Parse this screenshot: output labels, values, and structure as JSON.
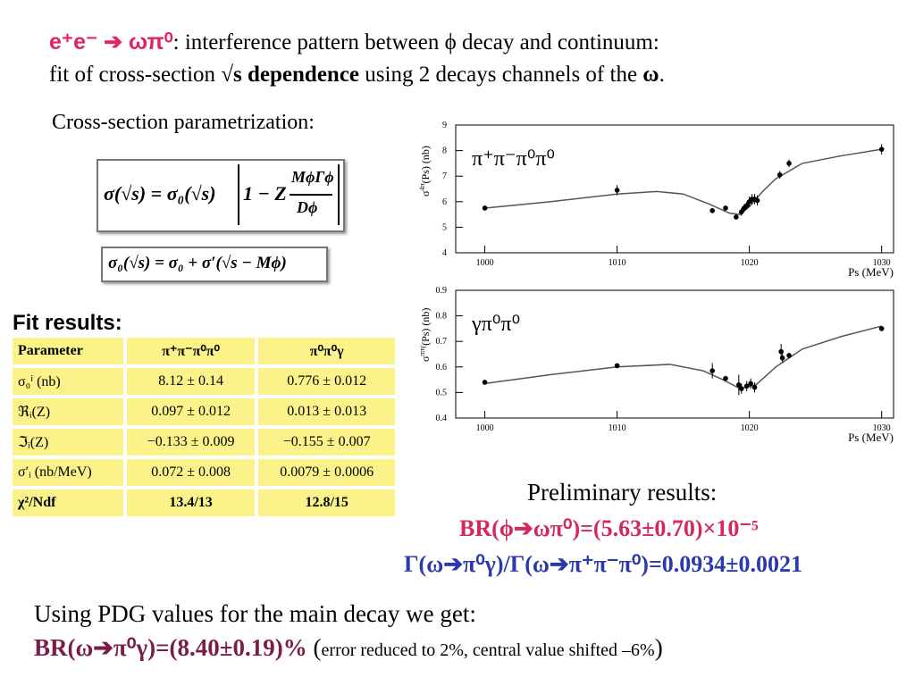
{
  "header": {
    "line_1": [
      "e⁺e⁻ ➔ ωπ⁰",
      ": interference pattern between ϕ decay and continuum:"
    ],
    "line_2": [
      "fit of cross-section ",
      "√s dependence",
      " using 2 decays channels of the ",
      "ω",
      "."
    ]
  },
  "parametrization_title": "Cross-section parametrization:",
  "formula_1": [
    "σ",
    "(√s)",
    " = σ₀",
    "(√s)",
    "1 − Z",
    "MϕΓϕ",
    "Dϕ"
  ],
  "formula_2": "σ₀(√s) = σ₀ + σ′(√s − Mϕ)",
  "fit_results_title": "Fit results:",
  "table": {
    "header": [
      "Parameter",
      "π⁺π⁻π⁰π⁰",
      "π⁰π⁰γ"
    ],
    "rows": [
      [
        "σ₀ⁱ (nb)",
        "8.12 ± 0.14",
        "0.776 ± 0.012"
      ],
      [
        "ℜᵢ(Z)",
        "0.097 ± 0.012",
        "0.013 ± 0.013"
      ],
      [
        "ℑᵢ(Z)",
        "−0.133 ± 0.009",
        "−0.155 ± 0.007"
      ],
      [
        "σ′ᵢ (nb/MeV)",
        "0.072 ± 0.008",
        "0.0079 ± 0.0006"
      ],
      [
        "χ²/Ndf",
        "13.4/13",
        "12.8/15"
      ]
    ]
  },
  "charts": [
    {
      "type": "scatter",
      "label": "π⁺π⁻π⁰π⁰",
      "ylabel": [
        "σ",
        "4π",
        "(Ps) (nb)"
      ],
      "xlabel": "Ps (MeV)",
      "x": [
        1000,
        1010,
        1017.2,
        1018.2,
        1019,
        1019.4,
        1019.6,
        1019.8,
        1020,
        1020.2,
        1020.4,
        1020.6,
        1022.3,
        1023,
        1030
      ],
      "values": [
        5.75,
        6.45,
        5.65,
        5.75,
        5.4,
        5.6,
        5.75,
        5.85,
        6.0,
        6.1,
        6.1,
        6.05,
        7.05,
        7.5,
        8.05
      ],
      "errors": [
        0.1,
        0.2,
        0.1,
        0.1,
        0.1,
        0.15,
        0.15,
        0.15,
        0.2,
        0.2,
        0.2,
        0.2,
        0.15,
        0.15,
        0.2
      ],
      "fit": {
        "x": [
          1000,
          1005,
          1010,
          1013,
          1015,
          1017,
          1018.5,
          1019.3,
          1020,
          1021,
          1022,
          1024,
          1027,
          1030
        ],
        "values": [
          5.75,
          6.0,
          6.3,
          6.4,
          6.3,
          5.9,
          5.55,
          5.5,
          5.8,
          6.4,
          6.9,
          7.5,
          7.8,
          8.05
        ]
      },
      "xlim": [
        997.8,
        1030.9
      ],
      "ylim": [
        4,
        9
      ],
      "xticks": [
        1000,
        1010,
        1020,
        1030
      ],
      "yticks": [
        4,
        5,
        6,
        7,
        8,
        9
      ],
      "color": "#000000"
    },
    {
      "type": "scatter",
      "label": "γπ⁰π⁰",
      "ylabel": [
        "σ",
        "ππγ",
        "(Ps) (nb)"
      ],
      "xlabel": "Ps (MeV)",
      "x": [
        1000,
        1010,
        1017.2,
        1018.2,
        1019.2,
        1019.4,
        1019.8,
        1020.1,
        1020.4,
        1022.4,
        1022.5,
        1023,
        1030
      ],
      "values": [
        0.54,
        0.605,
        0.585,
        0.555,
        0.53,
        0.515,
        0.525,
        0.535,
        0.52,
        0.66,
        0.635,
        0.645,
        0.75
      ],
      "errors": [
        0.008,
        0.01,
        0.03,
        0.01,
        0.04,
        0.02,
        0.02,
        0.02,
        0.02,
        0.03,
        0.02,
        0.01,
        0.01
      ],
      "fit": {
        "x": [
          1000,
          1005,
          1010,
          1014,
          1016.5,
          1018,
          1019.3,
          1020.5,
          1022,
          1024,
          1027,
          1030
        ],
        "values": [
          0.535,
          0.57,
          0.6,
          0.61,
          0.585,
          0.55,
          0.515,
          0.53,
          0.6,
          0.67,
          0.72,
          0.76
        ]
      },
      "xlim": [
        997.8,
        1030.9
      ],
      "ylim": [
        0.4,
        0.9
      ],
      "xticks": [
        1000,
        1010,
        1020,
        1030
      ],
      "yticks": [
        0.4,
        0.5,
        0.6,
        0.7,
        0.8,
        0.9
      ],
      "color": "#000000"
    }
  ],
  "preliminary": {
    "title": "Preliminary results:",
    "line_1": "BR(ϕ➔ωπ⁰)=(5.63±0.70)×10⁻⁵",
    "line_2": "Γ(ω➔π⁰γ)/Γ(ω➔π⁺π⁻π⁰)=0.0934±0.0021"
  },
  "conclusion": {
    "line_1": "Using PDG values for the main decay we get:",
    "line_2": [
      "BR(ω➔π⁰γ)=(8.40±0.19)%",
      " (",
      "error reduced to 2%, central value shifted –6%",
      ")"
    ]
  }
}
